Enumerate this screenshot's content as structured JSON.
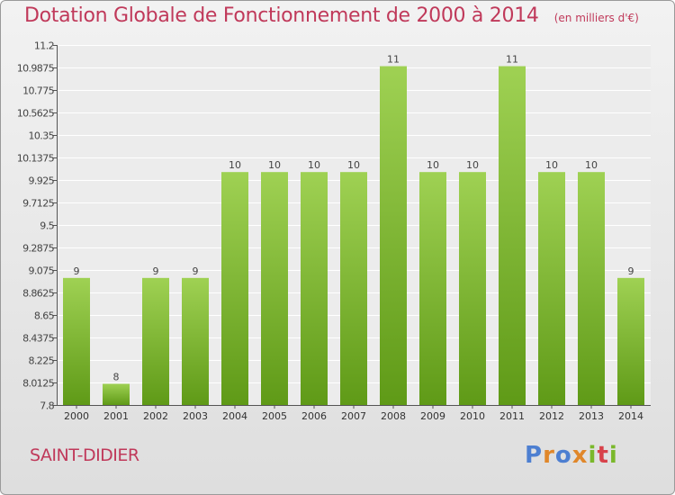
{
  "header": {
    "title": "Dotation Globale de Fonctionnement de 2000 à 2014",
    "subtitle": "(en milliers d'€)"
  },
  "footer": {
    "commune": "SAINT-DIDIER",
    "brand": "Proxiti"
  },
  "colors": {
    "title": "#c0395a",
    "bar_top": "#9fd153",
    "bar_bottom": "#5f9a17",
    "brand_letters": [
      "#4d7fd1",
      "#e0872a",
      "#4d7fd1",
      "#e0872a",
      "#7ab82b",
      "#d8424a",
      "#7ab82b"
    ]
  },
  "chart_data": {
    "type": "bar",
    "categories": [
      "2000",
      "2001",
      "2002",
      "2003",
      "2004",
      "2005",
      "2006",
      "2007",
      "2008",
      "2009",
      "2010",
      "2011",
      "2012",
      "2013",
      "2014"
    ],
    "values": [
      9,
      8,
      9,
      9,
      10,
      10,
      10,
      10,
      11,
      10,
      10,
      11,
      10,
      10,
      9
    ],
    "value_labels": [
      "9",
      "8",
      "9",
      "9",
      "10",
      "10",
      "10",
      "10",
      "11",
      "10",
      "10",
      "11",
      "10",
      "10",
      "9"
    ],
    "y_ticks": [
      "7.8",
      "8.0125",
      "8.225",
      "8.4375",
      "8.65",
      "8.8625",
      "9.075",
      "9.2875",
      "9.5",
      "9.7125",
      "9.925",
      "10.1375",
      "10.35",
      "10.5625",
      "10.775",
      "10.9875",
      "11.2"
    ],
    "ylim": [
      7.8,
      11.2
    ],
    "grid": true,
    "xlabel": "",
    "ylabel": ""
  }
}
